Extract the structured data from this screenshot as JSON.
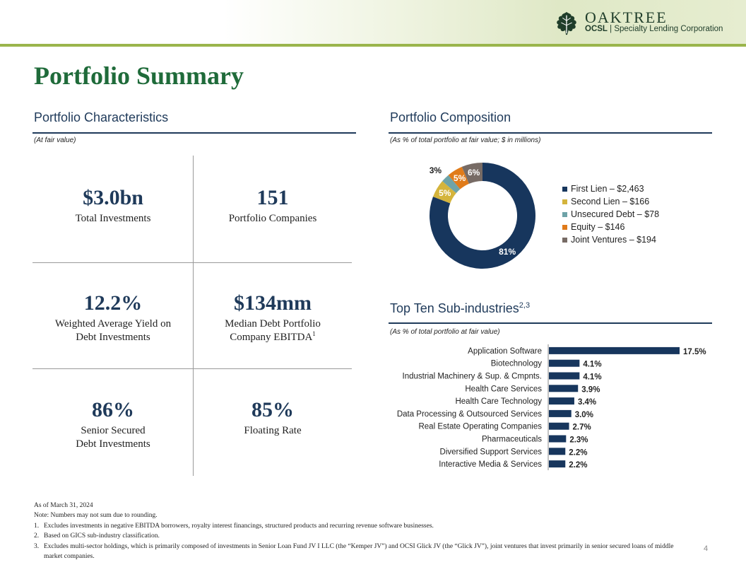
{
  "header": {
    "brand": "OAKTREE",
    "ticker": "OCSL",
    "subtitle": "| Specialty Lending Corporation"
  },
  "page_title": "Portfolio Summary",
  "characteristics": {
    "title": "Portfolio Characteristics",
    "note": "(At fair value)",
    "cells": [
      {
        "value": "$3.0bn",
        "label": "Total Investments",
        "label2": ""
      },
      {
        "value": "151",
        "label": "Portfolio  Companies",
        "label2": ""
      },
      {
        "value": "12.2%",
        "label": "Weighted Average Yield on",
        "label2": "Debt Investments"
      },
      {
        "value": "$134mm",
        "label": "Median Debt Portfolio",
        "label2": "Company EBITDA",
        "sup": "1"
      },
      {
        "value": "86%",
        "label": "Senior Secured",
        "label2": "Debt Investments"
      },
      {
        "value": "85%",
        "label": "Floating Rate",
        "label2": ""
      }
    ]
  },
  "composition": {
    "title": "Portfolio Composition",
    "note": "(As % of total portfolio at fair value; $ in millions)"
  },
  "subindustries": {
    "title": "Top Ten Sub-industries",
    "title_sup": "2,3",
    "note": "(As % of total portfolio at fair value)"
  },
  "chart_data": [
    {
      "type": "pie",
      "variant": "donut",
      "title": "Portfolio Composition",
      "legend_position": "right",
      "slices": [
        {
          "name": "First Lien – $2,463",
          "value": 2463,
          "label": "81%",
          "color": "#17365d"
        },
        {
          "name": "Second Lien – $166",
          "value": 166,
          "label": "5%",
          "color": "#d4b43c"
        },
        {
          "name": "Unsecured Debt – $78",
          "value": 78,
          "label": "3%",
          "color": "#6ea3a8"
        },
        {
          "name": "Equity – $146",
          "value": 146,
          "label": "5%",
          "color": "#e07b1a"
        },
        {
          "name": "Joint Ventures – $194",
          "value": 194,
          "label": "6%",
          "color": "#776b65"
        }
      ]
    },
    {
      "type": "bar",
      "orientation": "horizontal",
      "title": "Top Ten Sub-industries",
      "color": "#17365d",
      "categories": [
        "Application Software",
        "Biotechnology",
        "Industrial Machinery & Sup. & Cmpnts.",
        "Health Care Services",
        "Health Care Technology",
        "Data Processing & Outsourced Services",
        "Real Estate Operating Companies",
        "Pharmaceuticals",
        "Diversified Support Services",
        "Interactive Media & Services"
      ],
      "values": [
        17.5,
        4.1,
        4.1,
        3.9,
        3.4,
        3.0,
        2.7,
        2.3,
        2.2,
        2.2
      ],
      "labels": [
        "17.5%",
        "4.1%",
        "4.1%",
        "3.9%",
        "3.4%",
        "3.0%",
        "2.7%",
        "2.3%",
        "2.2%",
        "2.2%"
      ]
    }
  ],
  "footer": {
    "as_of": "As of March 31, 2024",
    "note": "Note: Numbers may not sum due to rounding.",
    "footnotes": [
      {
        "num": "1.",
        "text": "Excludes investments in negative EBITDA borrowers, royalty interest financings, structured products and recurring revenue software businesses."
      },
      {
        "num": "2.",
        "text": "Based on GICS sub-industry classification."
      },
      {
        "num": "3.",
        "text": "Excludes multi-sector holdings, which is primarily composed of investments in Senior Loan Fund JV I LLC (the “Kemper JV”) and OCSI Glick JV (the “Glick JV”), joint ventures that invest primarily in senior secured loans of middle market companies."
      }
    ]
  },
  "page_number": "4"
}
